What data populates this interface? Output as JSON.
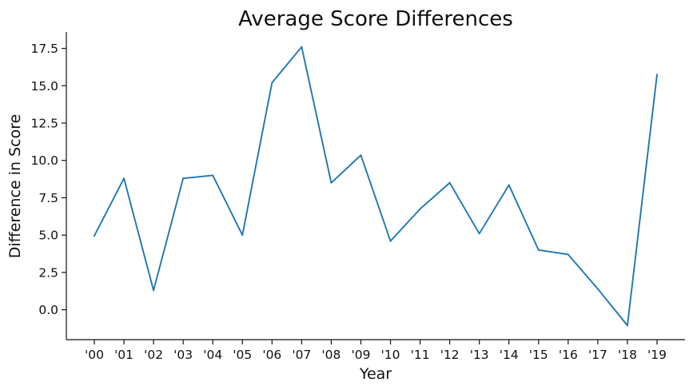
{
  "chart_data": {
    "type": "line",
    "title": "Average Score Differences",
    "xlabel": "Year",
    "ylabel": "Difference in Score",
    "categories": [
      "'00",
      "'01",
      "'02",
      "'03",
      "'04",
      "'05",
      "'06",
      "'07",
      "'08",
      "'09",
      "'10",
      "'11",
      "'12",
      "'13",
      "'14",
      "'15",
      "'16",
      "'17",
      "'18",
      "'19"
    ],
    "series": [
      {
        "color": "#1f77b4",
        "values": [
          4.95,
          8.8,
          1.3,
          8.8,
          9.0,
          5.0,
          15.2,
          17.6,
          8.5,
          10.35,
          4.6,
          6.75,
          8.5,
          5.1,
          8.35,
          4.0,
          3.7,
          1.4,
          -1.05,
          15.75
        ]
      }
    ],
    "ylim": [
      -2.0,
      18.6
    ],
    "yticks": [
      0.0,
      2.5,
      5.0,
      7.5,
      10.0,
      12.5,
      15.0,
      17.5
    ],
    "ytick_labels": [
      "0.0",
      "2.5",
      "5.0",
      "7.5",
      "10.0",
      "12.5",
      "15.0",
      "17.5"
    ],
    "grid": false,
    "legend": "none"
  }
}
